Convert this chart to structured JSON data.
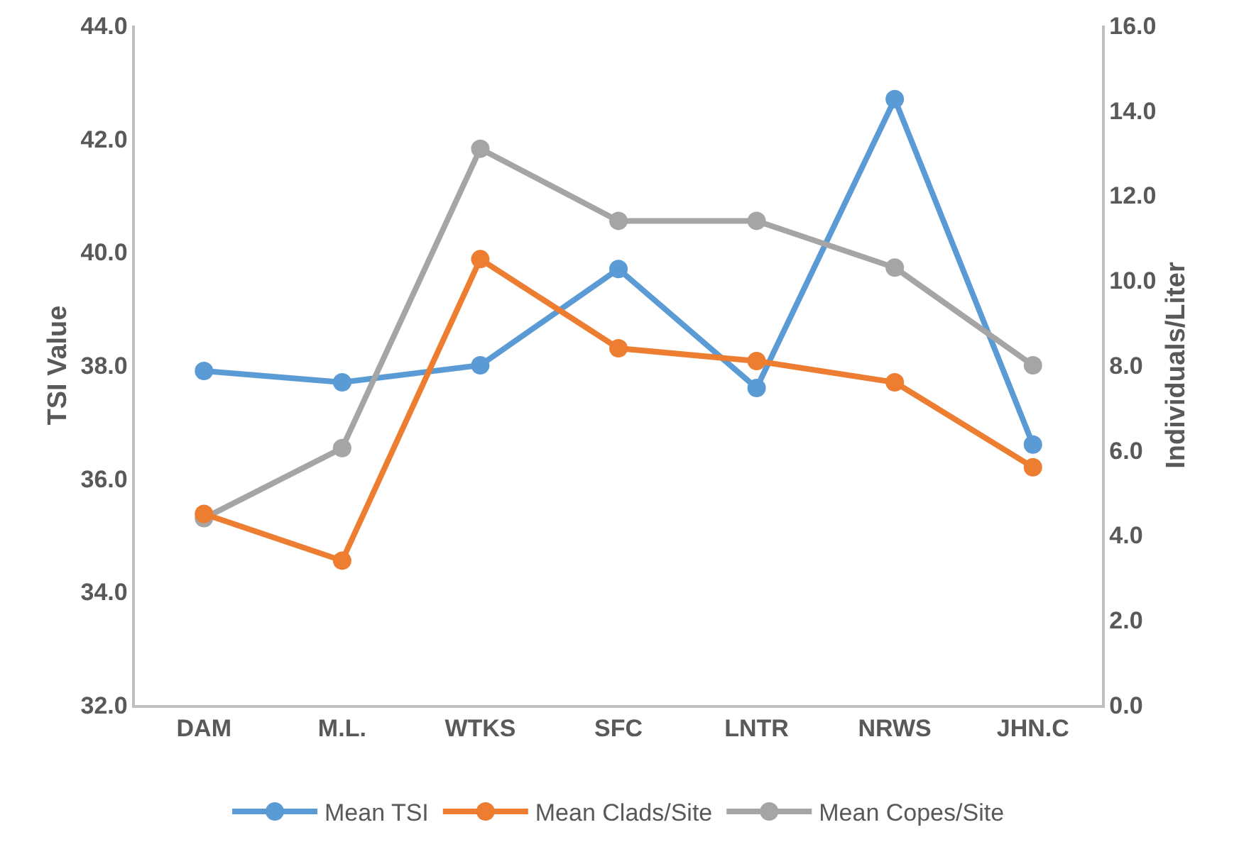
{
  "chart_data": {
    "type": "line",
    "ylabel": "TSI Value",
    "y2label": "Individuals/Liter",
    "categories": [
      "DAM",
      "M.L.",
      "WTKS",
      "SFC",
      "LNTR",
      "NRWS",
      "JHN.C"
    ],
    "series": [
      {
        "name": "Mean TSI",
        "color": "#5b9bd5",
        "values": [
          37.9,
          37.7,
          38.0,
          39.7,
          37.6,
          42.7,
          36.6
        ]
      },
      {
        "name": "Mean Clads/Site",
        "color": "#ed7d31",
        "axis": "y2",
        "values": [
          4.5,
          3.4,
          10.5,
          8.4,
          8.1,
          7.6,
          5.6
        ]
      },
      {
        "name": "Mean Copes/Site",
        "color": "#a5a5a5",
        "axis": "y2",
        "values": [
          4.4,
          6.05,
          13.1,
          11.4,
          11.4,
          10.3,
          8.0
        ]
      }
    ],
    "ylim": [
      32,
      44
    ],
    "yticks": [
      {
        "value": 32,
        "label": "32.0"
      },
      {
        "value": 34,
        "label": "34.0"
      },
      {
        "value": 36,
        "label": "36.0"
      },
      {
        "value": 38,
        "label": "38.0"
      },
      {
        "value": 40,
        "label": "40.0"
      },
      {
        "value": 42,
        "label": "42.0"
      },
      {
        "value": 44,
        "label": "44.0"
      }
    ],
    "y2lim": [
      0,
      16
    ],
    "y2ticks": [
      {
        "value": 0,
        "label": "0.0"
      },
      {
        "value": 2,
        "label": "2.0"
      },
      {
        "value": 4,
        "label": "4.0"
      },
      {
        "value": 6,
        "label": "6.0"
      },
      {
        "value": 8,
        "label": "8.0"
      },
      {
        "value": 10,
        "label": "10.0"
      },
      {
        "value": 12,
        "label": "12.0"
      },
      {
        "value": 14,
        "label": "14.0"
      },
      {
        "value": 16,
        "label": "16.0"
      }
    ],
    "grid": false,
    "legend": "bottom",
    "marker": "circle",
    "line_style": "solid"
  }
}
